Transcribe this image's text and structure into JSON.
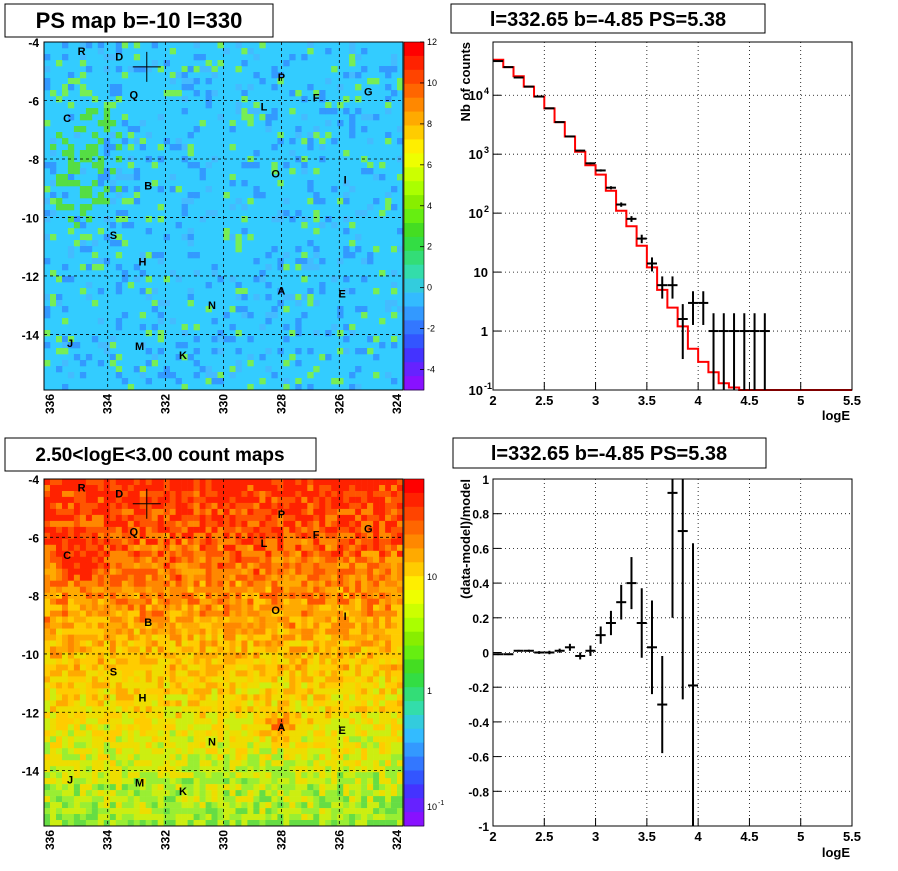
{
  "panels": {
    "ps_map": {
      "title": "PS map b=-10 l=330",
      "x_ticks": [
        "336",
        "334",
        "332",
        "330",
        "328",
        "326",
        "324"
      ],
      "y_ticks": [
        "-4",
        "-6",
        "-8",
        "-10",
        "-12",
        "-14"
      ],
      "colorbar_ticks": [
        "12",
        "10",
        "8",
        "6",
        "4",
        "2",
        "0",
        "-2",
        "-4"
      ],
      "source_labels": [
        {
          "text": "R",
          "l": 334.9,
          "b": -4.3
        },
        {
          "text": "D",
          "l": 333.6,
          "b": -4.5
        },
        {
          "text": "Q",
          "l": 333.1,
          "b": -5.8
        },
        {
          "text": "P",
          "l": 328.0,
          "b": -5.2
        },
        {
          "text": "F",
          "l": 326.8,
          "b": -5.9
        },
        {
          "text": "G",
          "l": 325.0,
          "b": -5.7
        },
        {
          "text": "L",
          "l": 328.6,
          "b": -6.2
        },
        {
          "text": "C",
          "l": 335.4,
          "b": -6.6
        },
        {
          "text": "O",
          "l": 328.2,
          "b": -8.5
        },
        {
          "text": "I",
          "l": 325.8,
          "b": -8.7
        },
        {
          "text": "B",
          "l": 332.6,
          "b": -8.9
        },
        {
          "text": "S",
          "l": 333.8,
          "b": -10.6
        },
        {
          "text": "H",
          "l": 332.8,
          "b": -11.5
        },
        {
          "text": "A",
          "l": 328.0,
          "b": -12.5
        },
        {
          "text": "E",
          "l": 325.9,
          "b": -12.6
        },
        {
          "text": "N",
          "l": 330.4,
          "b": -13.0
        },
        {
          "text": "J",
          "l": 335.3,
          "b": -14.3
        },
        {
          "text": "M",
          "l": 332.9,
          "b": -14.4
        },
        {
          "text": "K",
          "l": 331.4,
          "b": -14.7
        }
      ],
      "marker": {
        "l": 332.65,
        "b": -4.85
      }
    },
    "count_map": {
      "title": "2.50<logE<3.00 count maps",
      "x_ticks": [
        "336",
        "334",
        "332",
        "330",
        "328",
        "326",
        "324"
      ],
      "y_ticks": [
        "-4",
        "-6",
        "-8",
        "-10",
        "-12",
        "-14"
      ],
      "colorbar_ticks": [
        "10",
        "1",
        "10"
      ],
      "colorbar_exp": "-1"
    },
    "spectrum": {
      "title": "l=332.65 b=-4.85 PS=5.38",
      "xlabel": "logE",
      "ylabel": "Nb of counts",
      "x_ticks": [
        "2",
        "2.5",
        "3",
        "3.5",
        "4",
        "4.5",
        "5",
        "5.5"
      ],
      "y_ticks": [
        {
          "base": "10",
          "exp": "4"
        },
        {
          "base": "10",
          "exp": "3"
        },
        {
          "base": "10",
          "exp": "2"
        },
        {
          "base": "10",
          "exp": ""
        },
        {
          "base": "1",
          "exp": ""
        },
        {
          "base": "10",
          "exp": "-1"
        }
      ]
    },
    "residual": {
      "title": "l=332.65 b=-4.85 PS=5.38",
      "xlabel": "logE",
      "ylabel": "(data-model)/model",
      "x_ticks": [
        "2",
        "2.5",
        "3",
        "3.5",
        "4",
        "4.5",
        "5",
        "5.5"
      ],
      "y_ticks": [
        "1",
        "0.8",
        "0.6",
        "0.4",
        "0.2",
        "0",
        "-0.2",
        "-0.4",
        "-0.6",
        "-0.8",
        "-1"
      ]
    }
  },
  "chart_data": [
    {
      "type": "heatmap",
      "title": "PS map b=-10 l=330",
      "x_range": [
        336.2,
        323.8
      ],
      "y_range": [
        -15.9,
        -4.0
      ],
      "z_range": [
        -5,
        12
      ],
      "colors": {
        "background": "#33ccff",
        "warm": "#66dd33",
        "cool": "#3399ff"
      }
    },
    {
      "type": "heatmap",
      "title": "2.50<logE<3.00 count maps",
      "x_range": [
        336.2,
        323.8
      ],
      "y_range": [
        -15.9,
        -4.0
      ],
      "z_scale": "log",
      "colors": {
        "top": "#ff3300",
        "middle": "#ffcc00",
        "bottom": "#99ee33"
      }
    },
    {
      "type": "line",
      "title": "l=332.65 b=-4.85 PS=5.38",
      "xlabel": "logE",
      "ylabel": "Nb of counts",
      "xlim": [
        2,
        5.5
      ],
      "ylim": [
        0.1,
        80000
      ],
      "y_scale": "log",
      "series": [
        {
          "x": [
            2.05,
            2.15,
            2.25,
            2.35,
            2.45,
            2.55,
            2.65,
            2.75,
            2.85,
            2.95,
            3.05,
            3.15,
            3.25,
            3.35,
            3.45,
            3.55,
            3.65,
            3.75,
            3.85,
            3.95,
            4.05,
            4.15,
            4.25,
            4.35,
            4.45,
            4.55,
            4.65
          ],
          "y": [
            38000,
            30000,
            20000,
            14000,
            9500,
            6000,
            3500,
            2000,
            1150,
            700,
            530,
            270,
            140,
            80,
            37,
            14,
            6,
            6,
            1.6,
            3,
            3,
            1,
            1,
            1,
            1,
            1,
            1
          ]
        },
        {
          "x": [
            2.0,
            2.1,
            2.2,
            2.3,
            2.4,
            2.5,
            2.6,
            2.7,
            2.8,
            2.9,
            3.0,
            3.1,
            3.2,
            3.3,
            3.4,
            3.5,
            3.6,
            3.7,
            3.8,
            3.9,
            4.0,
            4.1,
            4.2,
            4.3,
            4.4,
            5.5
          ],
          "y": [
            40000,
            30000,
            21000,
            14000,
            9500,
            6000,
            3500,
            2000,
            1100,
            650,
            450,
            240,
            110,
            60,
            28,
            12,
            5,
            2.5,
            1.2,
            0.5,
            0.3,
            0.2,
            0.13,
            0.11,
            0.1,
            0.1
          ]
        }
      ]
    },
    {
      "type": "scatter",
      "title": "l=332.65 b=-4.85 PS=5.38",
      "xlabel": "logE",
      "ylabel": "(data-model)/model",
      "xlim": [
        2,
        5.5
      ],
      "ylim": [
        -1,
        1
      ],
      "x": [
        2.05,
        2.15,
        2.25,
        2.35,
        2.45,
        2.55,
        2.65,
        2.75,
        2.85,
        2.95,
        3.05,
        3.15,
        3.25,
        3.35,
        3.45,
        3.55,
        3.65,
        3.75,
        3.85,
        3.95
      ],
      "y": [
        -0.01,
        -0.01,
        0.01,
        0.01,
        0.0,
        0.0,
        0.01,
        0.03,
        -0.02,
        0.01,
        0.1,
        0.17,
        0.29,
        0.4,
        0.17,
        0.03,
        -0.3,
        0.92,
        0.7,
        -0.19
      ],
      "y_err": [
        0.005,
        0.005,
        0.005,
        0.006,
        0.008,
        0.01,
        0.012,
        0.02,
        0.02,
        0.03,
        0.05,
        0.07,
        0.1,
        0.15,
        0.2,
        0.27,
        0.28,
        0.72,
        0.97,
        0.82
      ]
    }
  ]
}
